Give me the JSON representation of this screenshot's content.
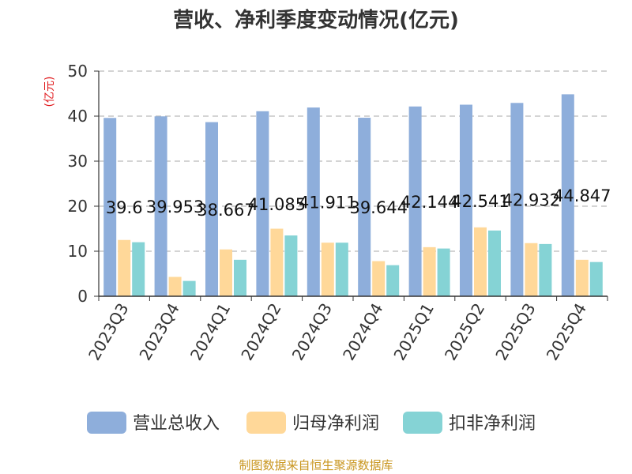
{
  "chart_data": {
    "type": "bar",
    "title": "营收、净利季度变动情况(亿元)",
    "unit_label": "(亿元)",
    "categories": [
      "2023Q3",
      "2023Q4",
      "2024Q1",
      "2024Q2",
      "2024Q3",
      "2024Q4",
      "2025Q1",
      "2025Q2",
      "2025Q3",
      "2025Q4"
    ],
    "series": [
      {
        "name": "营业总收入",
        "color": "#8eaedb",
        "values": [
          39.6,
          39.953,
          38.667,
          41.085,
          41.911,
          39.644,
          42.144,
          42.541,
          42.932,
          44.847
        ],
        "labels": [
          "39.6",
          "39.953",
          "38.667",
          "41.085",
          "41.911",
          "39.644",
          "42.144",
          "42.541",
          "42.932",
          "44.847"
        ]
      },
      {
        "name": "归母净利润",
        "color": "#ffd899",
        "values": [
          12.5,
          4.3,
          10.4,
          15.0,
          11.9,
          7.8,
          10.9,
          15.3,
          11.8,
          8.1
        ]
      },
      {
        "name": "扣非净利润",
        "color": "#85d3d5",
        "values": [
          12.0,
          3.4,
          8.1,
          13.5,
          11.9,
          6.9,
          10.6,
          14.6,
          11.6,
          7.6
        ]
      }
    ],
    "yticks": [
      "0",
      "10",
      "20",
      "30",
      "40",
      "50"
    ],
    "ylim": [
      0,
      50
    ],
    "grid": true,
    "legend_position": "bottom",
    "source": "制图数据来自恒生聚源数据库"
  }
}
